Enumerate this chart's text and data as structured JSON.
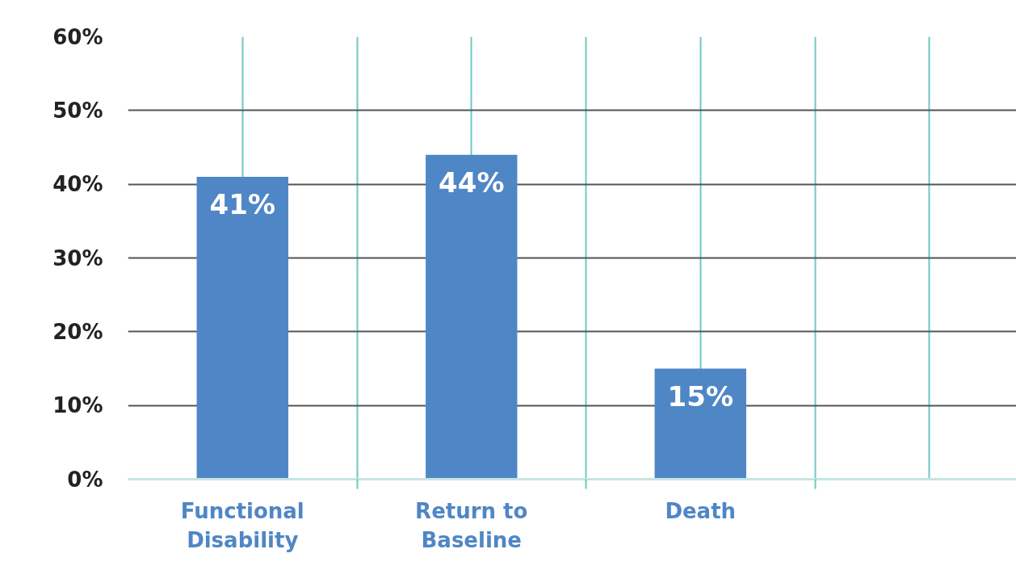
{
  "chart_data": {
    "type": "bar",
    "categories": [
      "Functional Disability",
      "Return to Baseline",
      "Death",
      null
    ],
    "values": [
      41,
      44,
      15,
      null
    ],
    "value_labels": [
      "41%",
      "44%",
      "15%",
      null
    ],
    "color": "#4f86c6",
    "ylim": [
      0,
      60
    ],
    "yticks": [
      {
        "value": 0,
        "label": "0%"
      },
      {
        "value": 10,
        "label": "10%"
      },
      {
        "value": 20,
        "label": "20%"
      },
      {
        "value": 30,
        "label": "30%"
      },
      {
        "value": 40,
        "label": "40%"
      },
      {
        "value": 50,
        "label": "50%"
      },
      {
        "value": 60,
        "label": "60%"
      }
    ],
    "grid": true
  }
}
